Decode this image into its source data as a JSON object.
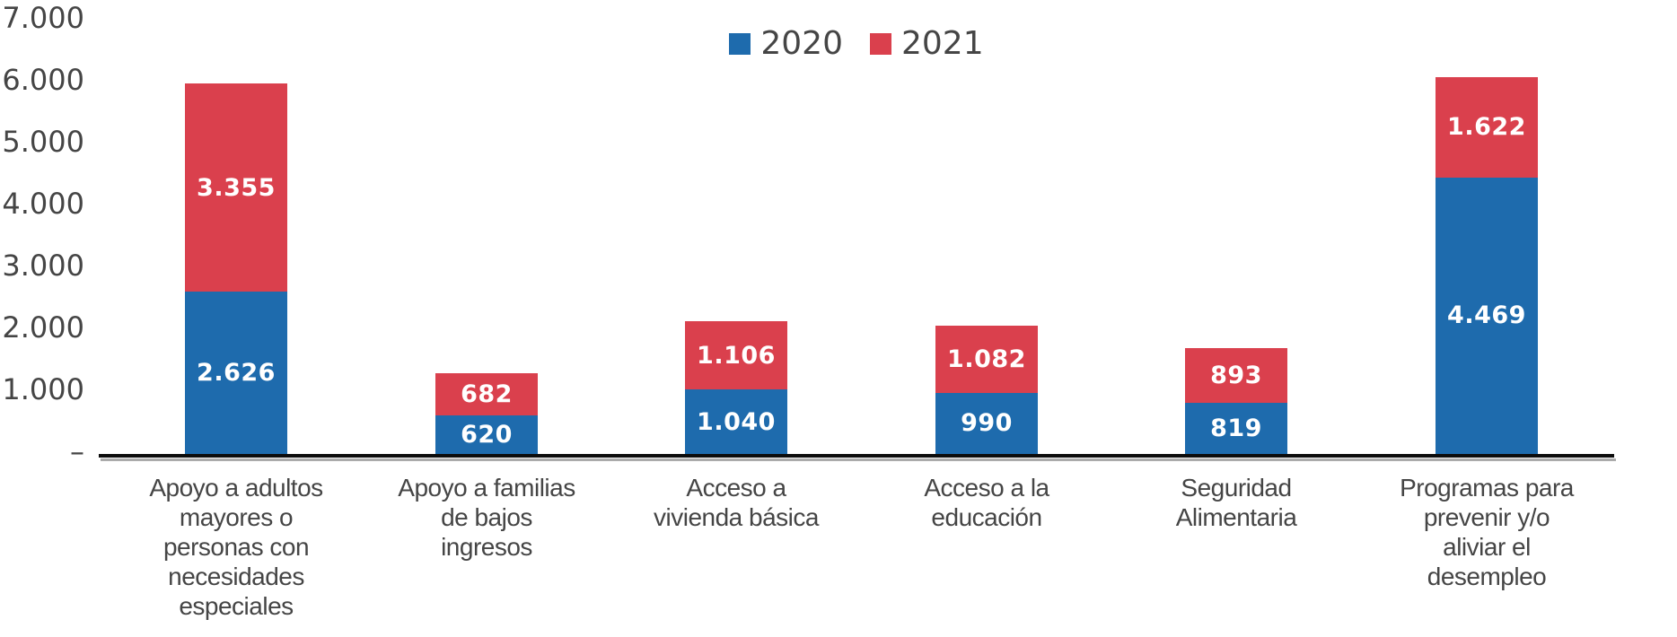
{
  "chart_data": {
    "type": "bar",
    "stacked": true,
    "title": "",
    "xlabel": "",
    "ylabel": "",
    "gridlines": false,
    "legend_position": "top-center",
    "y_axis": {
      "min": 0,
      "max": 7000,
      "step": 1000,
      "tick_labels": [
        "–",
        "1.000",
        "2.000",
        "3.000",
        "4.000",
        "5.000",
        "6.000",
        "7.000"
      ]
    },
    "categories": [
      {
        "label": "Apoyo a adultos mayores o personas con necesidades especiales",
        "label_lines": [
          "Apoyo a adultos",
          "mayores o",
          "personas con",
          "necesidades",
          "especiales"
        ]
      },
      {
        "label": "Apoyo a familias de bajos ingresos",
        "label_lines": [
          "Apoyo a familias",
          "de bajos",
          "ingresos"
        ]
      },
      {
        "label": "Acceso a vivienda básica",
        "label_lines": [
          "Acceso a",
          "vivienda básica"
        ]
      },
      {
        "label": "Acceso a la educación",
        "label_lines": [
          "Acceso a la",
          "educación"
        ]
      },
      {
        "label": "Seguridad Alimentaria",
        "label_lines": [
          "Seguridad",
          "Alimentaria"
        ]
      },
      {
        "label": "Programas para prevenir y/o aliviar el desempleo",
        "label_lines": [
          "Programas para",
          "prevenir y/o",
          "aliviar el",
          "desempleo"
        ]
      }
    ],
    "series": [
      {
        "name": "2020",
        "color": "#1E6BAD",
        "values": [
          2626,
          620,
          1040,
          990,
          819,
          4469
        ],
        "value_labels": [
          "2.626",
          "620",
          "1.040",
          "990",
          "819",
          "4.469"
        ]
      },
      {
        "name": "2021",
        "color": "#DA404D",
        "values": [
          3355,
          682,
          1106,
          1082,
          893,
          1622
        ],
        "value_labels": [
          "3.355",
          "682",
          "1.106",
          "1.082",
          "893",
          "1.622"
        ]
      }
    ]
  }
}
